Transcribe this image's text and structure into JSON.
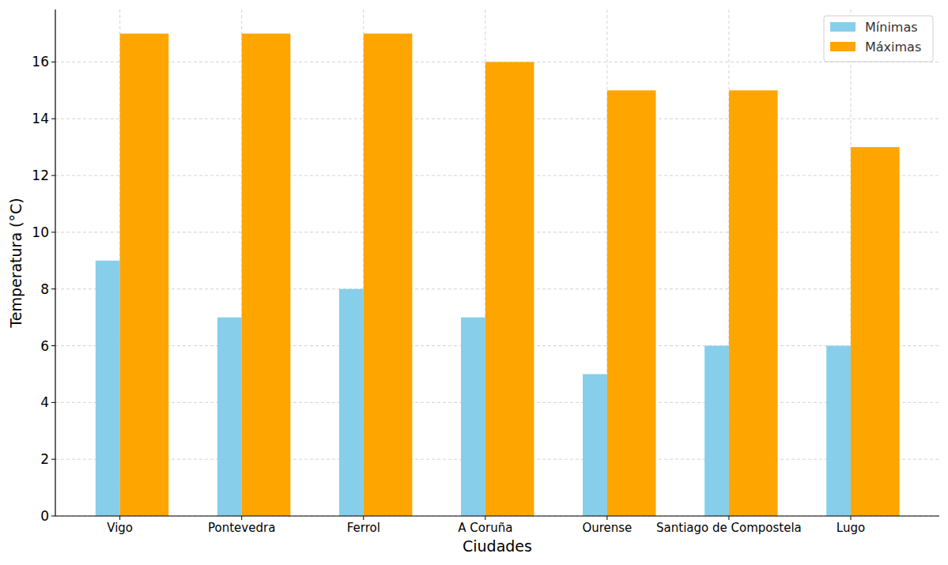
{
  "chart_data": {
    "type": "bar",
    "x_label": "Ciudades",
    "y_label": "Temperatura (°C)",
    "categories": [
      "Vigo",
      "Pontevedra",
      "Ferrol",
      "A Coruña",
      "Ourense",
      "Santiago de Compostela",
      "Lugo"
    ],
    "series": [
      {
        "name": "Mínimas",
        "color": "#87ceeb",
        "values": [
          9,
          7,
          8,
          7,
          5,
          6,
          6
        ]
      },
      {
        "name": "Máximas",
        "color": "#ffa500",
        "values": [
          17,
          17,
          17,
          16,
          15,
          15,
          13
        ]
      }
    ],
    "ylim": [
      0,
      17.85
    ],
    "yticks": [
      0,
      2,
      4,
      6,
      8,
      10,
      12,
      14,
      16
    ],
    "grid": true,
    "legend": "upper right"
  }
}
